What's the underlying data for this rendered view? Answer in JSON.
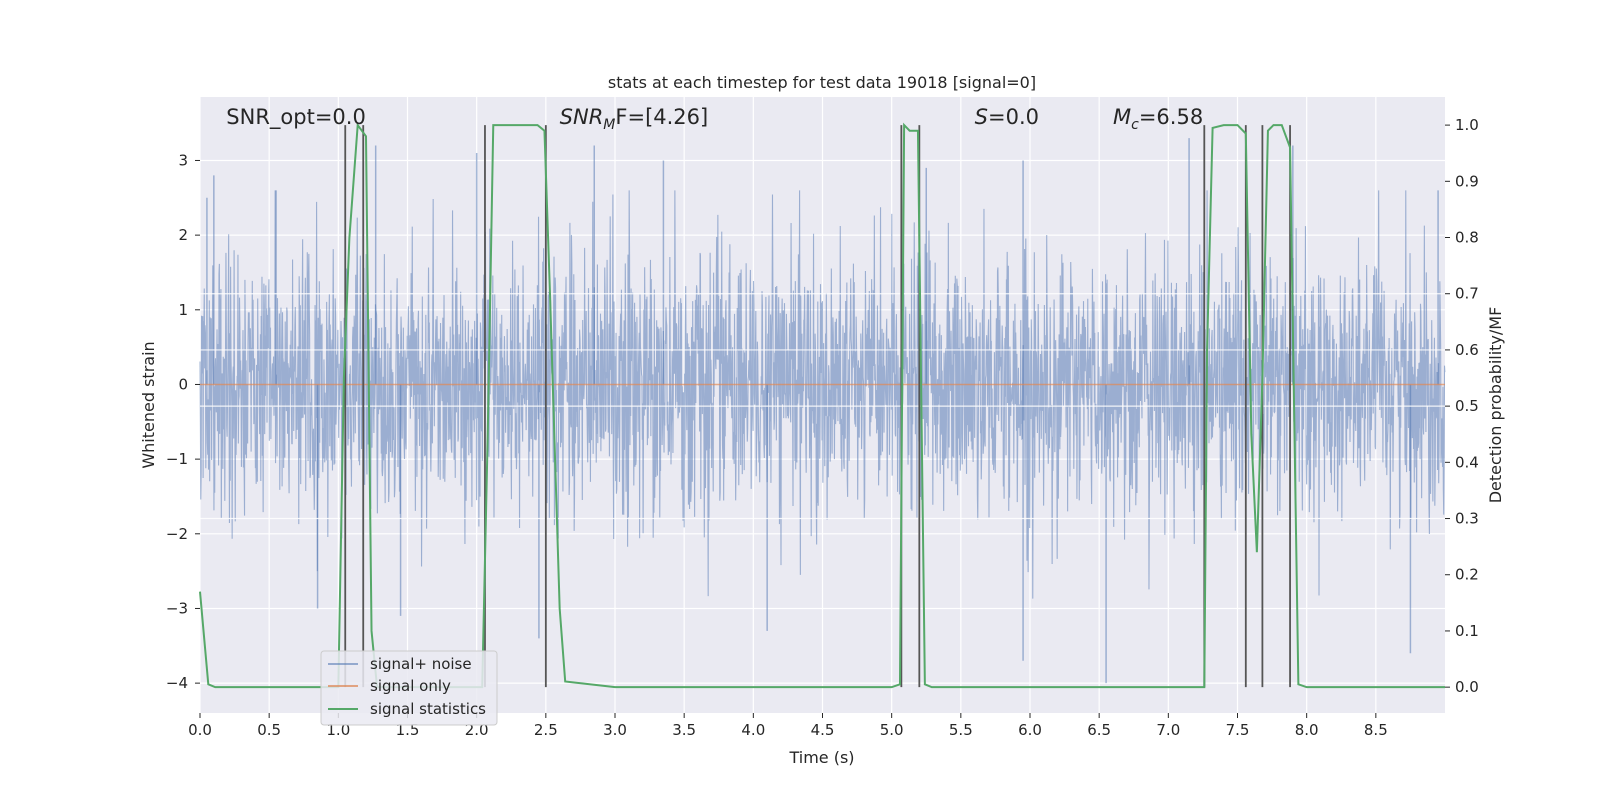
{
  "chart_data": {
    "type": "line",
    "title": "stats at each timestep for test data 19018 [signal=0]",
    "xlabel": "Time (s)",
    "ylabel": "Whitened strain",
    "ylabel_right": "Detection probability/MF",
    "xlim": [
      0,
      9.0
    ],
    "ylim": [
      -4.4,
      3.85
    ],
    "ylim_right": [
      -0.046,
      1.05
    ],
    "x_ticks": [
      0.0,
      0.5,
      1.0,
      1.5,
      2.0,
      2.5,
      3.0,
      3.5,
      4.0,
      4.5,
      5.0,
      5.5,
      6.0,
      6.5,
      7.0,
      7.5,
      8.0,
      8.5
    ],
    "x_tick_labels": [
      "0.0",
      "0.5",
      "1.0",
      "1.5",
      "2.0",
      "2.5",
      "3.0",
      "3.5",
      "4.0",
      "4.5",
      "5.0",
      "5.5",
      "6.0",
      "6.5",
      "7.0",
      "7.5",
      "8.0",
      "8.5"
    ],
    "y_ticks": [
      3,
      2,
      1,
      0,
      -1,
      -2,
      -3,
      -4
    ],
    "y_tick_labels": [
      "3",
      "2",
      "1",
      "0",
      "−1",
      "−2",
      "−3",
      "−4"
    ],
    "y_ticks_right": [
      1.0,
      0.9,
      0.8,
      0.7,
      0.6,
      0.5,
      0.4,
      0.3,
      0.2,
      0.1,
      0.0
    ],
    "y_tick_labels_right": [
      "1.0",
      "0.9",
      "0.8",
      "0.7",
      "0.6",
      "0.5",
      "0.4",
      "0.3",
      "0.2",
      "0.1",
      "0.0"
    ],
    "grid": true,
    "legend_position": "lower-left",
    "colors": {
      "background": "#eaeaf2",
      "noise": "#4c72b0",
      "signal": "#dd8452",
      "stats": "#55a868",
      "vlines": "#555555"
    },
    "annotations": [
      {
        "text": "SNR_opt=0.0",
        "x": 0.19
      },
      {
        "text": "SNR",
        "sub": "M",
        "tail": "F=[4.26]",
        "italic": true,
        "x": 2.6
      },
      {
        "text": "S",
        "tail": "=0.0",
        "italic": true,
        "x": 5.6
      },
      {
        "text": "M",
        "sub": "c",
        "tail": "=6.58",
        "italic": true,
        "x": 6.6
      }
    ],
    "series": [
      {
        "name": "signal+ noise",
        "kind": "noise",
        "description_values": {
          "sample_rate_hz": 2048,
          "std": 1.0,
          "spikes": [
            [
              0.05,
              2.5
            ],
            [
              0.1,
              2.8
            ],
            [
              0.55,
              2.6
            ],
            [
              0.85,
              -3.0
            ],
            [
              1.27,
              3.2
            ],
            [
              1.45,
              -3.1
            ],
            [
              2.0,
              3.1
            ],
            [
              2.45,
              -3.4
            ],
            [
              2.85,
              3.2
            ],
            [
              3.35,
              3.0
            ],
            [
              4.1,
              -3.3
            ],
            [
              5.25,
              2.9
            ],
            [
              5.95,
              3.0
            ],
            [
              5.95,
              -3.7
            ],
            [
              6.55,
              -4.0
            ],
            [
              7.15,
              3.3
            ],
            [
              7.9,
              3.2
            ],
            [
              8.75,
              -3.6
            ],
            [
              8.95,
              2.6
            ]
          ]
        }
      },
      {
        "name": "signal only",
        "kind": "signal",
        "values": [
          0
        ]
      },
      {
        "name": "signal statistics",
        "kind": "stats",
        "x": [
          0.0,
          0.06,
          0.11,
          0.16,
          0.5,
          1.0,
          1.0,
          1.04,
          1.08,
          1.14,
          1.2,
          1.24,
          1.28,
          1.33,
          1.5,
          2.0,
          2.04,
          2.08,
          2.12,
          2.16,
          2.2,
          2.44,
          2.49,
          2.53,
          2.6,
          2.64,
          3.0,
          4.0,
          5.0,
          5.06,
          5.09,
          5.13,
          5.19,
          5.24,
          5.29,
          6.0,
          7.0,
          7.26,
          7.28,
          7.32,
          7.4,
          7.5,
          7.56,
          7.6,
          7.64,
          7.68,
          7.72,
          7.76,
          7.82,
          7.88,
          7.94,
          8.0,
          8.5,
          9.0
        ],
        "values": [
          0.17,
          0.005,
          0.0,
          0.0,
          0.0,
          0.0,
          0.0,
          0.55,
          0.8,
          1.0,
          0.98,
          0.1,
          0.0,
          0.0,
          0.0,
          0.0,
          0.0,
          0.45,
          1.0,
          1.0,
          1.0,
          1.0,
          0.99,
          0.7,
          0.14,
          0.01,
          0.0,
          0.0,
          0.0,
          0.005,
          1.0,
          0.99,
          0.99,
          0.005,
          0.0,
          0.0,
          0.0,
          0.0,
          0.6,
          0.995,
          1.0,
          1.0,
          0.985,
          0.45,
          0.24,
          0.55,
          0.99,
          1.0,
          1.0,
          0.96,
          0.005,
          0.0,
          0.0,
          0.0
        ]
      }
    ],
    "vlines": [
      1.05,
      1.18,
      2.06,
      2.5,
      5.07,
      5.2,
      7.26,
      7.56,
      7.68,
      7.88
    ],
    "horizontal_grid_right": [
      0.3,
      0.5,
      0.6,
      0.7
    ]
  }
}
